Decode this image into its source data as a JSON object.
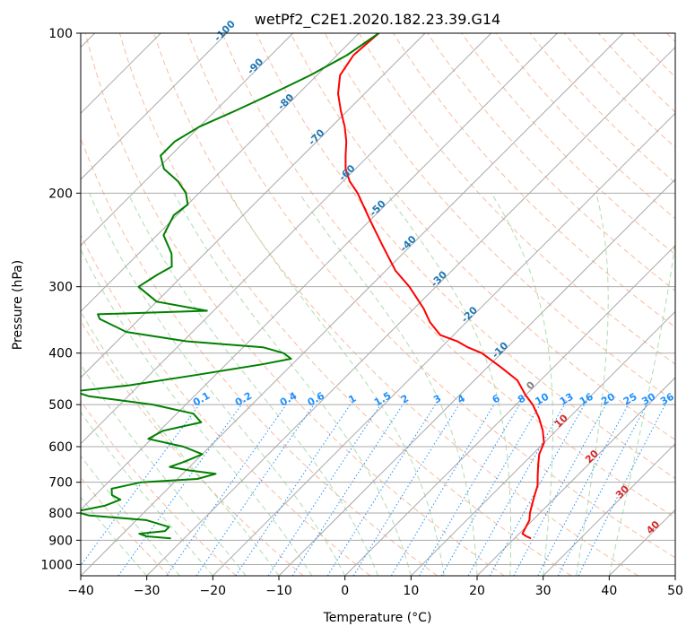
{
  "chart_data": {
    "type": "skew-t",
    "title": "wetPf2_C2E1.2020.182.23.39.G14",
    "xlabel": "Temperature (°C)",
    "ylabel": "Pressure (hPa)",
    "xlim": [
      -40,
      50
    ],
    "ylim": [
      1050,
      100
    ],
    "y_scale": "log",
    "grid": true,
    "x_ticks": [
      -40,
      -30,
      -20,
      -10,
      0,
      10,
      20,
      30,
      40,
      50
    ],
    "y_ticks": [
      100,
      200,
      300,
      400,
      500,
      600,
      700,
      800,
      900,
      1000
    ],
    "colors": {
      "temperature": "#ff0000",
      "dewpoint": "#008000",
      "isotherm_labels": "#1f77b4",
      "isotherm_labels_warm": "#d62728",
      "mixing_ratio": "#1e90ff",
      "dry_adiabat": "#f4a582",
      "moist_adiabat": "#a6d8a6",
      "grid": "#a9a9a9"
    },
    "isotherm_labels": [
      "-100",
      "-90",
      "-80",
      "-70",
      "-60",
      "-50",
      "-40",
      "-30",
      "-20",
      "-10",
      "0",
      "10",
      "20",
      "30",
      "40"
    ],
    "isotherm_label_values": [
      -100,
      -90,
      -80,
      -70,
      -60,
      -50,
      -40,
      -30,
      -20,
      -10,
      0,
      10,
      20,
      30,
      40
    ],
    "mixing_ratio_labels": [
      "0.1",
      "0.2",
      "0.4",
      "0.6",
      "1",
      "1.5",
      "2",
      "3",
      "4",
      "6",
      "8",
      "10",
      "13",
      "16",
      "20",
      "25",
      "30",
      "36"
    ],
    "mixing_ratio_values": [
      0.1,
      0.2,
      0.4,
      0.6,
      1,
      1.5,
      2,
      3,
      4,
      6,
      8,
      10,
      13,
      16,
      20,
      25,
      30,
      36
    ],
    "series": [
      {
        "name": "Temperature",
        "points": [
          [
            -77.0,
            100
          ],
          [
            -77.5,
            110
          ],
          [
            -76.5,
            120
          ],
          [
            -74.0,
            130
          ],
          [
            -71.0,
            140
          ],
          [
            -68.0,
            150
          ],
          [
            -65.5,
            160
          ],
          [
            -63.5,
            170
          ],
          [
            -61.5,
            180
          ],
          [
            -59.0,
            190
          ],
          [
            -56.0,
            200
          ],
          [
            -50.0,
            225
          ],
          [
            -44.5,
            250
          ],
          [
            -38.5,
            280
          ],
          [
            -34.0,
            300
          ],
          [
            -28.5,
            330
          ],
          [
            -25.5,
            350
          ],
          [
            -22.0,
            370
          ],
          [
            -18.5,
            380
          ],
          [
            -16.0,
            390
          ],
          [
            -13.0,
            400
          ],
          [
            -8.0,
            425
          ],
          [
            -3.5,
            450
          ],
          [
            0.0,
            480
          ],
          [
            2.5,
            500
          ],
          [
            5.5,
            530
          ],
          [
            8.0,
            560
          ],
          [
            10.0,
            590
          ],
          [
            11.0,
            620
          ],
          [
            12.5,
            650
          ],
          [
            14.0,
            680
          ],
          [
            15.5,
            710
          ],
          [
            16.5,
            740
          ],
          [
            17.5,
            770
          ],
          [
            18.5,
            800
          ],
          [
            19.5,
            825
          ],
          [
            20.0,
            850
          ],
          [
            20.5,
            875
          ],
          [
            21.5,
            885
          ],
          [
            22.5,
            893
          ]
        ]
      },
      {
        "name": "Dewpoint",
        "points": [
          [
            -77.0,
            100
          ],
          [
            -78.5,
            110
          ],
          [
            -81.0,
            120
          ],
          [
            -84.0,
            130
          ],
          [
            -87.0,
            140
          ],
          [
            -90.0,
            150
          ],
          [
            -91.5,
            160
          ],
          [
            -91.5,
            170
          ],
          [
            -89.0,
            180
          ],
          [
            -85.0,
            190
          ],
          [
            -82.0,
            200
          ],
          [
            -80.0,
            210
          ],
          [
            -80.5,
            220
          ],
          [
            -79.0,
            240
          ],
          [
            -75.0,
            260
          ],
          [
            -73.0,
            275
          ],
          [
            -74.0,
            285
          ],
          [
            -75.0,
            300
          ],
          [
            -70.0,
            320
          ],
          [
            -61.0,
            333
          ],
          [
            -77.0,
            338
          ],
          [
            -76.0,
            345
          ],
          [
            -70.0,
            365
          ],
          [
            -59.5,
            380
          ],
          [
            -47.0,
            390
          ],
          [
            -43.0,
            400
          ],
          [
            -41.0,
            410
          ],
          [
            -44.5,
            420
          ],
          [
            -53.0,
            440
          ],
          [
            -61.5,
            460
          ],
          [
            -69.0,
            472
          ],
          [
            -66.0,
            482
          ],
          [
            -55.0,
            500
          ],
          [
            -47.5,
            520
          ],
          [
            -45.0,
            540
          ],
          [
            -49.5,
            560
          ],
          [
            -50.5,
            580
          ],
          [
            -44.0,
            600
          ],
          [
            -40.0,
            620
          ],
          [
            -41.5,
            640
          ],
          [
            -43.0,
            655
          ],
          [
            -39.5,
            665
          ],
          [
            -35.0,
            675
          ],
          [
            -37.0,
            690
          ],
          [
            -45.0,
            700
          ],
          [
            -48.5,
            720
          ],
          [
            -47.5,
            740
          ],
          [
            -45.5,
            755
          ],
          [
            -47.0,
            775
          ],
          [
            -50.5,
            795
          ],
          [
            -48.0,
            808
          ],
          [
            -38.5,
            825
          ],
          [
            -34.0,
            850
          ],
          [
            -34.0,
            865
          ],
          [
            -37.5,
            875
          ],
          [
            -36.0,
            885
          ],
          [
            -32.0,
            893
          ]
        ]
      }
    ]
  }
}
